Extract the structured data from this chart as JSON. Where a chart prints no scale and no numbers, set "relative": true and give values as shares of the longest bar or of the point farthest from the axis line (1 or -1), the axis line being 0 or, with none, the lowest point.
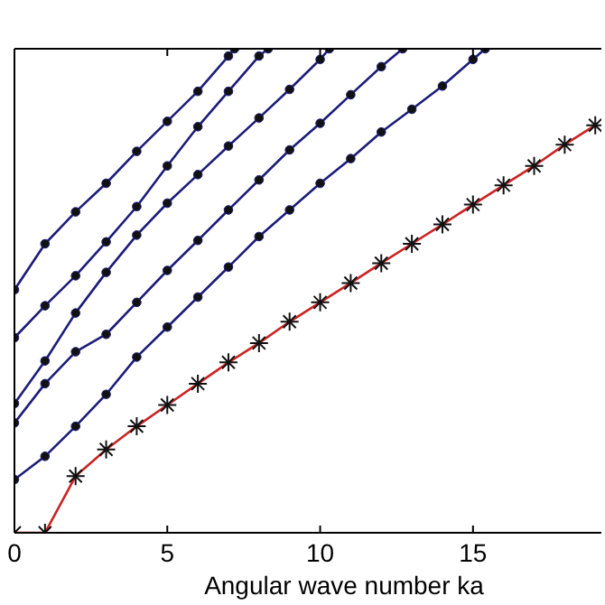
{
  "chart_data": {
    "type": "line",
    "xlabel": "Angular wave number ka",
    "relative": true,
    "xlim": [
      0,
      19.2
    ],
    "xticks": [
      0,
      5,
      10,
      15
    ],
    "grid": false,
    "line_style": "solid",
    "series": [
      {
        "color": "#1c1c7a",
        "marker": "circle",
        "x": [
          0,
          1,
          2,
          3,
          4,
          5,
          6,
          7,
          7.2
        ],
        "values": [
          0.502,
          0.597,
          0.663,
          0.722,
          0.788,
          0.85,
          0.912,
          0.985,
          1
        ]
      },
      {
        "color": "#1c1c7a",
        "marker": "circle",
        "x": [
          0,
          1,
          2,
          3,
          4,
          5,
          6,
          7,
          8,
          8.3
        ],
        "values": [
          0.403,
          0.469,
          0.531,
          0.601,
          0.674,
          0.758,
          0.839,
          0.912,
          0.985,
          1
        ]
      },
      {
        "color": "#1c1c7a",
        "marker": "circle",
        "x": [
          0,
          1,
          2,
          3,
          4,
          5,
          6,
          7,
          8,
          9,
          10,
          10.3
        ],
        "values": [
          0.267,
          0.355,
          0.454,
          0.538,
          0.615,
          0.681,
          0.74,
          0.799,
          0.857,
          0.916,
          0.978,
          1
        ]
      },
      {
        "color": "#1c1c7a",
        "marker": "circle",
        "x": [
          0,
          1,
          2,
          3,
          4,
          5,
          6,
          7,
          8,
          9,
          10,
          11,
          12,
          12.7
        ],
        "values": [
          0.227,
          0.308,
          0.374,
          0.41,
          0.476,
          0.542,
          0.604,
          0.667,
          0.729,
          0.791,
          0.846,
          0.905,
          0.963,
          1
        ]
      },
      {
        "color": "#1c1c7a",
        "marker": "circle",
        "x": [
          0,
          1,
          2,
          3,
          4,
          5,
          6,
          7,
          8,
          9,
          10,
          11,
          12,
          13,
          14,
          15,
          15.4
        ],
        "values": [
          0.11,
          0.158,
          0.22,
          0.286,
          0.363,
          0.425,
          0.487,
          0.549,
          0.612,
          0.667,
          0.722,
          0.773,
          0.828,
          0.875,
          0.923,
          0.978,
          1
        ]
      },
      {
        "color": "#cc2222",
        "marker": "cross",
        "x": [
          0,
          1,
          2,
          3,
          4,
          5,
          6,
          7,
          8,
          9,
          10,
          11,
          12,
          13,
          14,
          15,
          16,
          17,
          18,
          19
        ],
        "values": [
          0,
          0,
          0.117,
          0.172,
          0.22,
          0.264,
          0.308,
          0.352,
          0.392,
          0.436,
          0.476,
          0.516,
          0.557,
          0.597,
          0.637,
          0.678,
          0.718,
          0.758,
          0.802,
          0.842
        ]
      }
    ]
  }
}
